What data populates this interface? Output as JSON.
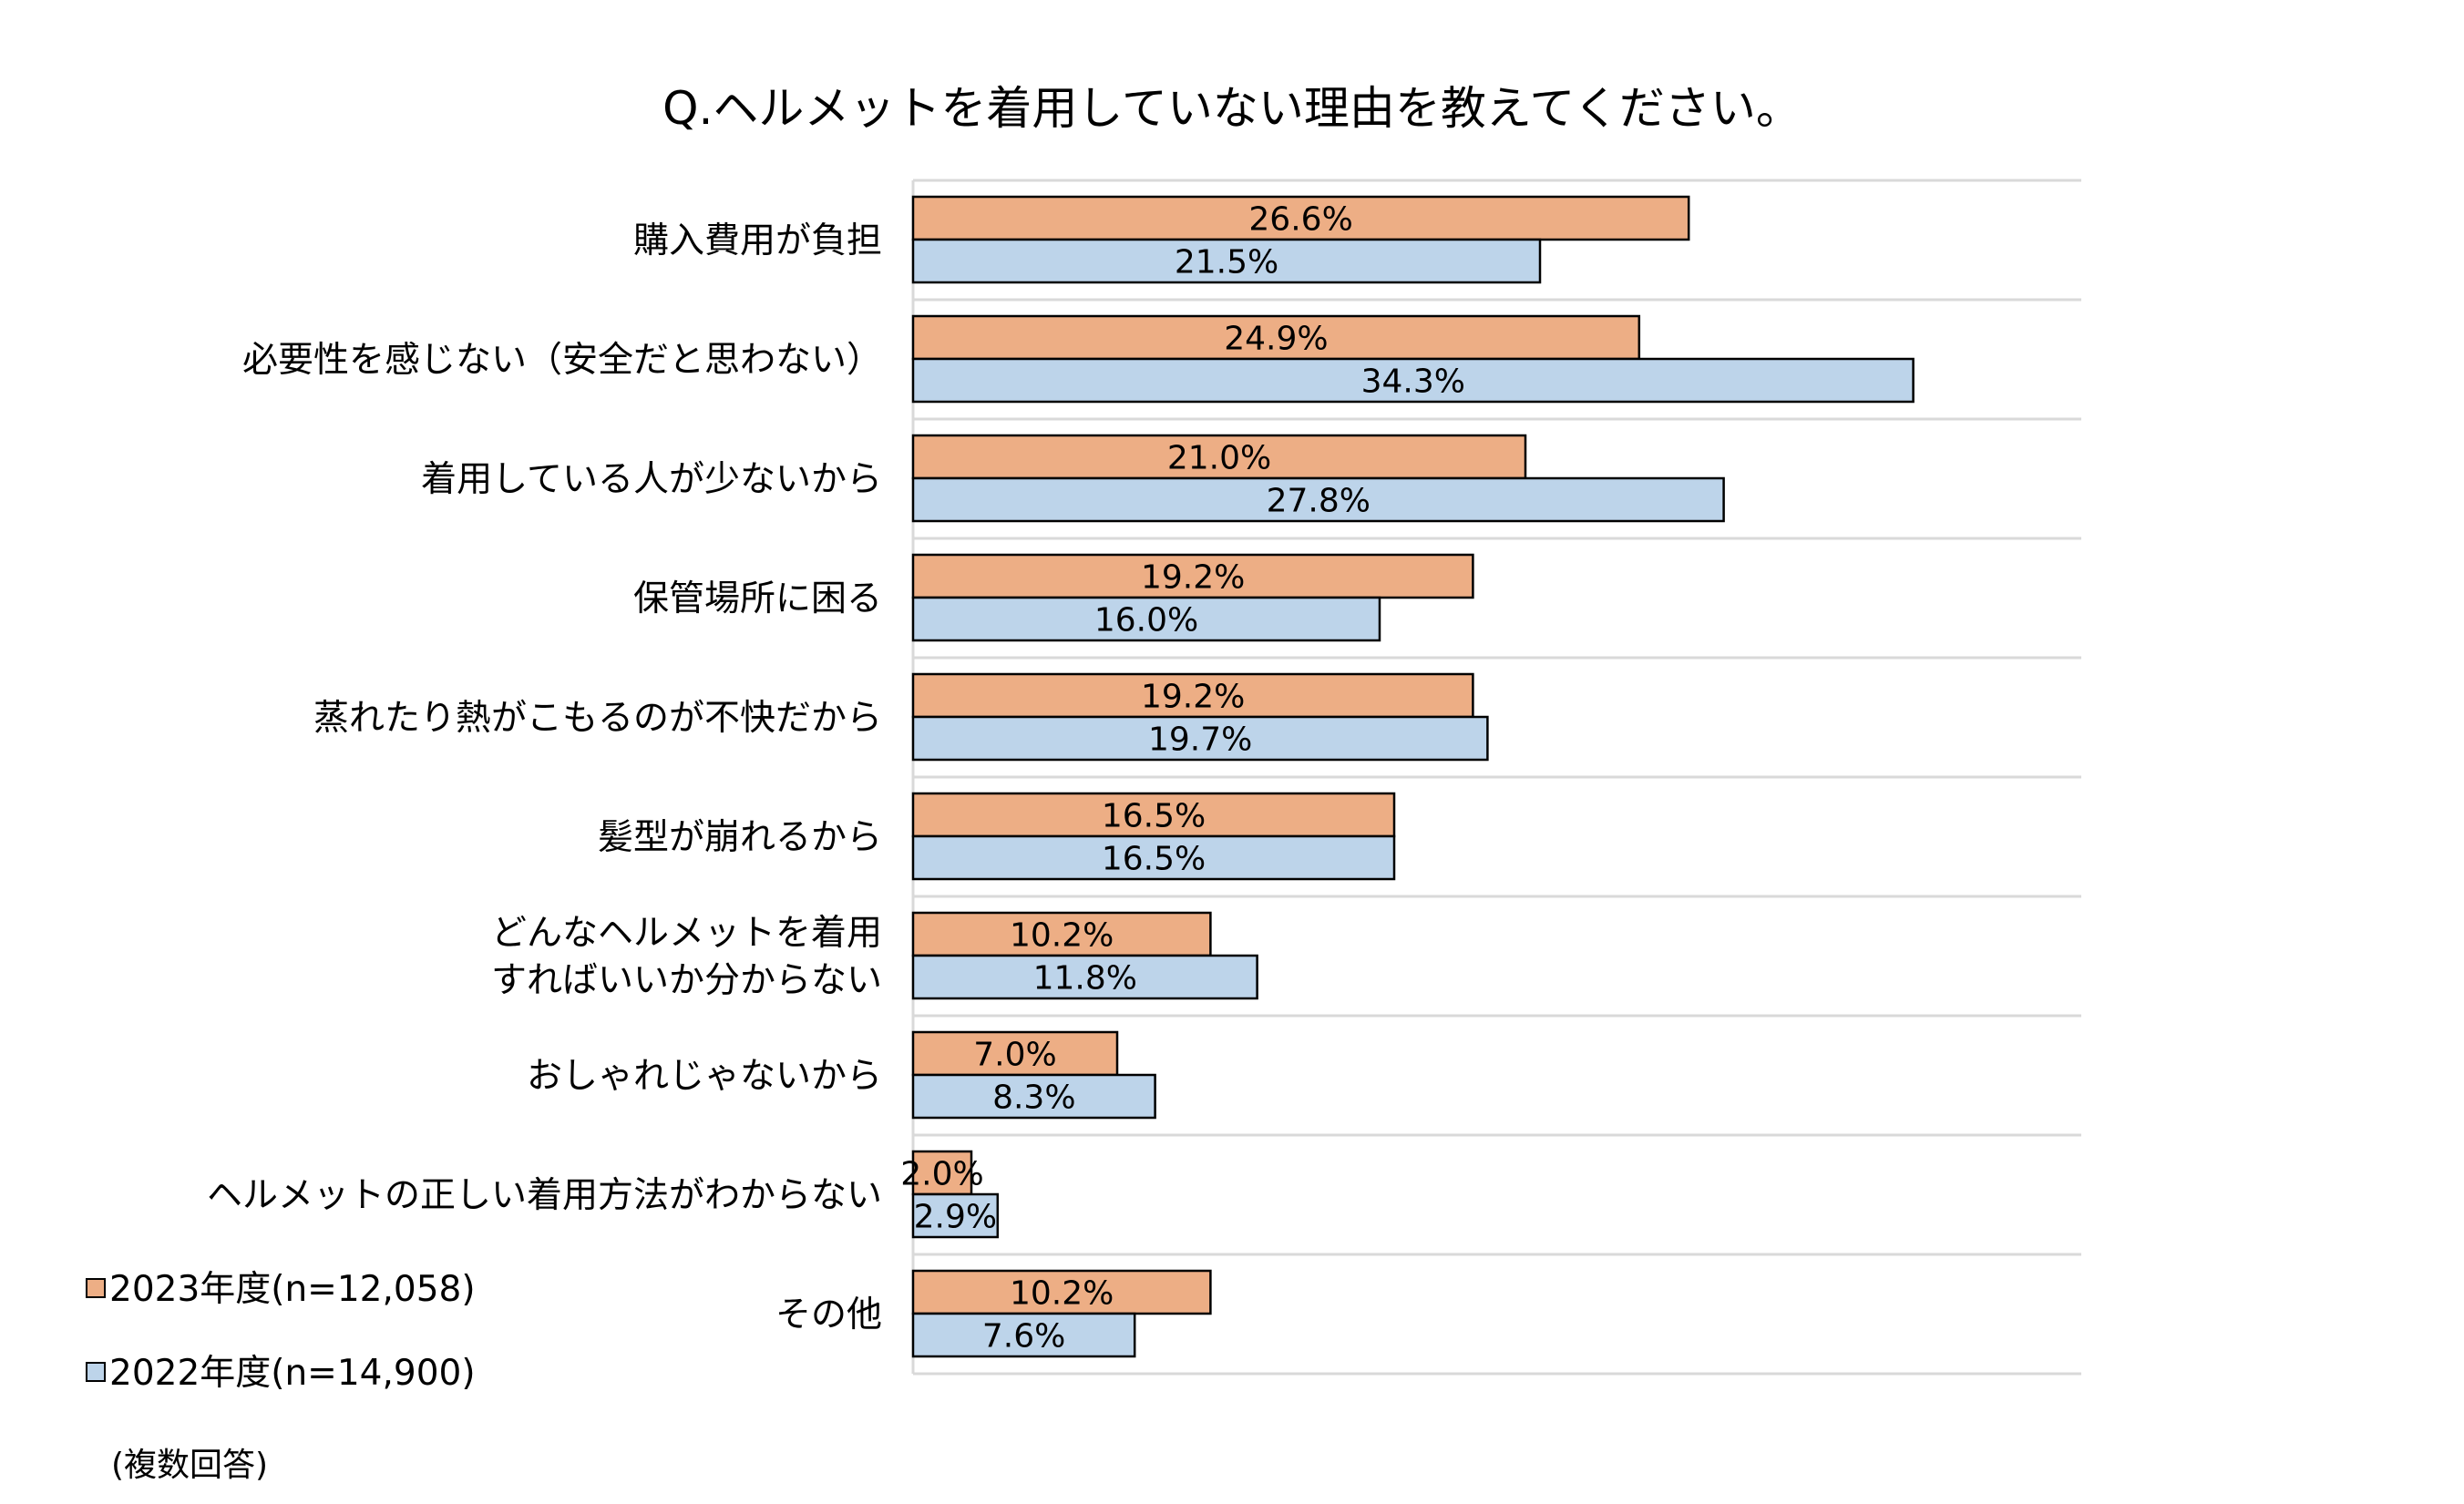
{
  "chart_data": {
    "type": "bar",
    "orientation": "horizontal",
    "title": "Q.ヘルメットを着用していない理由を教えてください。",
    "categories": [
      [
        "購入費用が負担"
      ],
      [
        "必要性を感じない（安全だと思わない）"
      ],
      [
        "着用している人が少ないから"
      ],
      [
        "保管場所に困る"
      ],
      [
        "蒸れたり熱がこもるのが不快だから"
      ],
      [
        "髪型が崩れるから"
      ],
      [
        "どんなヘルメットを着用",
        "すればいいか分からない"
      ],
      [
        "おしゃれじゃないから"
      ],
      [
        "ヘルメットの正しい着用方法がわからない"
      ],
      [
        "その他"
      ]
    ],
    "series": [
      {
        "name": "2023年度(n=12,058)",
        "color": "#EDAE85",
        "values": [
          26.6,
          24.9,
          21.0,
          19.2,
          19.2,
          16.5,
          10.2,
          7.0,
          2.0,
          10.2
        ],
        "labels": [
          "26.6%",
          "24.9%",
          "21.0%",
          "19.2%",
          "19.2%",
          "16.5%",
          "10.2%",
          "7.0%",
          "2.0%",
          "10.2%"
        ]
      },
      {
        "name": "2022年度(n=14,900)",
        "color": "#BDD4EA",
        "values": [
          21.5,
          34.3,
          27.8,
          16.0,
          19.7,
          16.5,
          11.8,
          8.3,
          2.9,
          7.6
        ],
        "labels": [
          "21.5%",
          "34.3%",
          "27.8%",
          "16.0%",
          "19.7%",
          "16.5%",
          "11.8%",
          "8.3%",
          "2.9%",
          "7.6%"
        ]
      }
    ],
    "xlim": [
      0,
      40
    ],
    "grid": true,
    "legend_position": "bottom-left",
    "note": "(複数回答)"
  }
}
